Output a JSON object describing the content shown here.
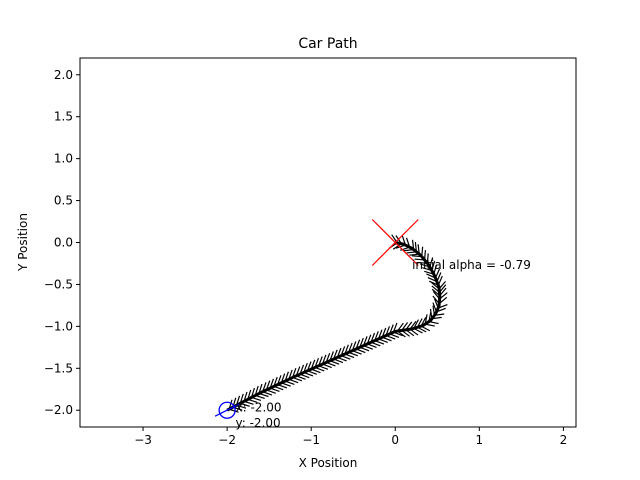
{
  "chart_data": {
    "type": "line",
    "title": "Car Path",
    "xlabel": "X Position",
    "ylabel": "Y Position",
    "xlim": [
      -3.75,
      2.15
    ],
    "ylim": [
      -2.2,
      2.2
    ],
    "xticks": [
      -3,
      -2,
      -1,
      0,
      1,
      2
    ],
    "yticks": [
      -2.0,
      -1.5,
      -1.0,
      -0.5,
      0.0,
      0.5,
      1.0,
      1.5,
      2.0
    ],
    "xtick_labels": [
      "−3",
      "−2",
      "−1",
      "0",
      "1",
      "2"
    ],
    "ytick_labels": [
      "−2.0",
      "−1.5",
      "−1.0",
      "−0.5",
      "0.0",
      "0.5",
      "1.0",
      "1.5",
      "2.0"
    ],
    "grid": false,
    "series": [
      {
        "values_desc": "path",
        "x": [
          0.0,
          0.1,
          0.2,
          0.3,
          0.4,
          0.47,
          0.52,
          0.53,
          0.52,
          0.48,
          0.42,
          0.33,
          0.2,
          0.0,
          -0.4,
          -0.8,
          -1.2,
          -1.6,
          -2.0
        ],
        "y": [
          0.0,
          -0.02,
          -0.07,
          -0.15,
          -0.27,
          -0.4,
          -0.53,
          -0.65,
          -0.76,
          -0.85,
          -0.93,
          -0.99,
          -1.03,
          -1.06,
          -1.24,
          -1.42,
          -1.6,
          -1.79,
          -2.0
        ],
        "color": "#000000"
      }
    ],
    "target_marker": {
      "x": 0.0,
      "y": 0.0,
      "color": "#ff0000"
    },
    "start_marker": {
      "x": -2.0,
      "y": -2.0,
      "color": "#0000ff"
    },
    "annotations": [
      {
        "text": "initial alpha = -0.79",
        "x": 0.2,
        "y": -0.27
      },
      {
        "text": "x: -2.00",
        "x": -1.9,
        "y": -1.97
      },
      {
        "text": "y: -2.00",
        "x": -1.9,
        "y": -2.15
      }
    ]
  }
}
